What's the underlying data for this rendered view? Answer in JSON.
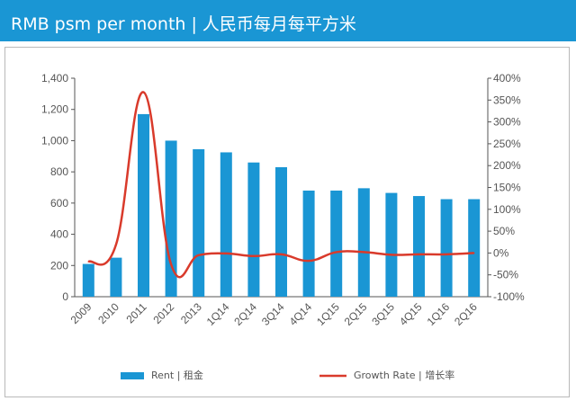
{
  "header": {
    "title": "RMB psm per month | 人民币每月每平方米",
    "background": "#1a96d4"
  },
  "chart_data": {
    "type": "bar",
    "categories": [
      "2009",
      "2010",
      "2011",
      "2012",
      "2013",
      "1Q14",
      "2Q14",
      "3Q14",
      "4Q14",
      "1Q15",
      "2Q15",
      "3Q15",
      "4Q15",
      "1Q16",
      "2Q16"
    ],
    "series": [
      {
        "name": "Rent | 租金",
        "type": "bar",
        "axis": "left",
        "color": "#1a96d4",
        "values": [
          210,
          250,
          1170,
          1000,
          945,
          925,
          860,
          830,
          680,
          680,
          695,
          665,
          645,
          625,
          625
        ]
      },
      {
        "name": "Growth Rate | 增长率",
        "type": "line",
        "axis": "right",
        "color": "#d93a2b",
        "values": [
          -20,
          19,
          368,
          -26,
          -5,
          -1,
          -7,
          -3,
          -18,
          2,
          2,
          -4,
          -3,
          -3,
          0
        ]
      }
    ],
    "left_axis": {
      "ylim": [
        0,
        1400
      ],
      "ticks": [
        "0",
        "200",
        "400",
        "600",
        "800",
        "1,000",
        "1,200",
        "1,400"
      ]
    },
    "right_axis": {
      "ylim": [
        -100,
        400
      ],
      "ticks": [
        "-100%",
        "-50%",
        "0%",
        "50%",
        "100%",
        "150%",
        "200%",
        "250%",
        "300%",
        "350%",
        "400%"
      ]
    },
    "grid": false,
    "legend_position": "bottom"
  }
}
